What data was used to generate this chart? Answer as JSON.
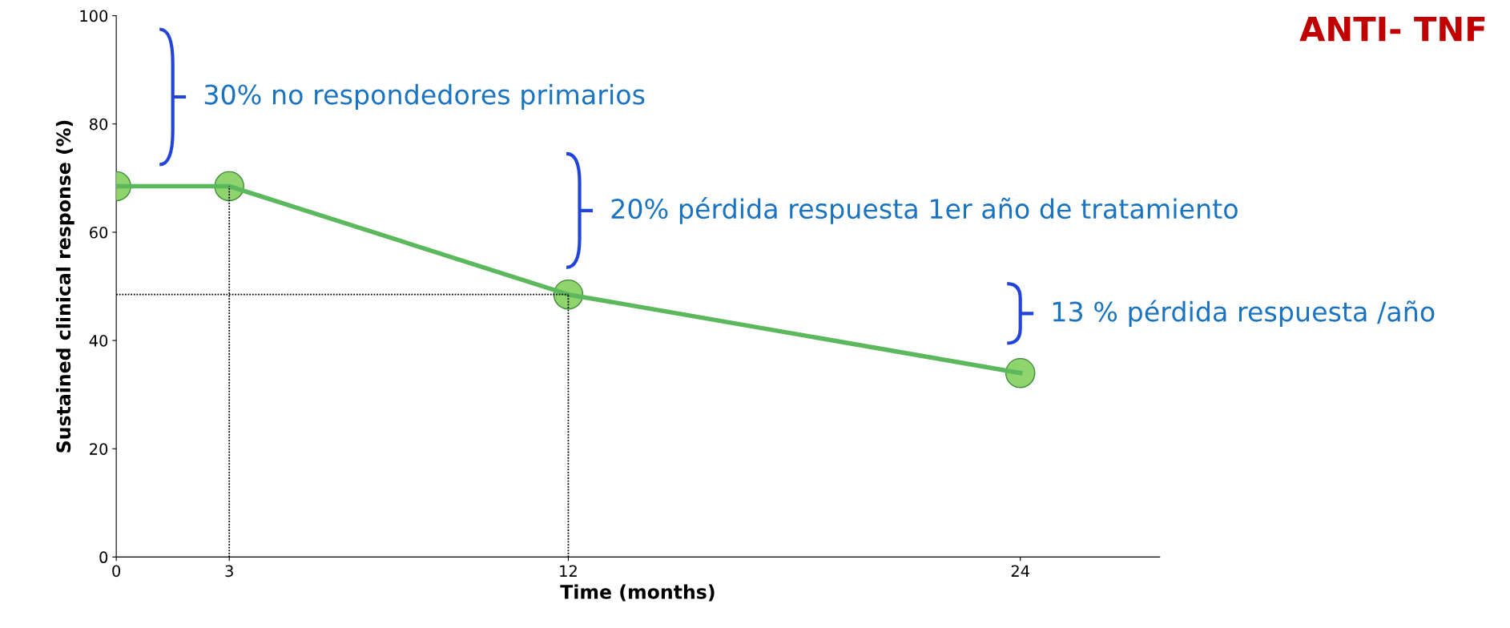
{
  "chart_data": {
    "type": "line",
    "title": "ANTI- TNF",
    "xlabel": "Time (months)",
    "ylabel": "Sustained clinical response (%)",
    "xlim": [
      0,
      27.7
    ],
    "xticks": [
      0,
      3,
      12,
      24
    ],
    "ylim": [
      0,
      100
    ],
    "yticks": [
      0,
      20,
      40,
      60,
      80,
      100
    ],
    "grid": false,
    "series": [
      {
        "x": [
          0,
          3,
          12,
          24
        ],
        "values": [
          68.5,
          68.5,
          48.5,
          34
        ],
        "color": "#5cb85c",
        "marker": "circle",
        "line_style": "solid"
      },
      {
        "x": [
          3,
          3
        ],
        "values": [
          0,
          68.5
        ],
        "color": "#000000",
        "marker": "none",
        "line_style": "dotted"
      },
      {
        "x": [
          12,
          12
        ],
        "values": [
          0,
          48.5
        ],
        "color": "#000000",
        "marker": "none",
        "line_style": "dotted"
      },
      {
        "x": [
          0,
          12
        ],
        "values": [
          48.5,
          48.5
        ],
        "color": "#000000",
        "marker": "none",
        "line_style": "dotted"
      }
    ],
    "annotations": [
      "30% no respondedores primarios",
      "20% pérdida respuesta 1er año de tratamiento",
      "13 % pérdida respuesta /año"
    ]
  }
}
